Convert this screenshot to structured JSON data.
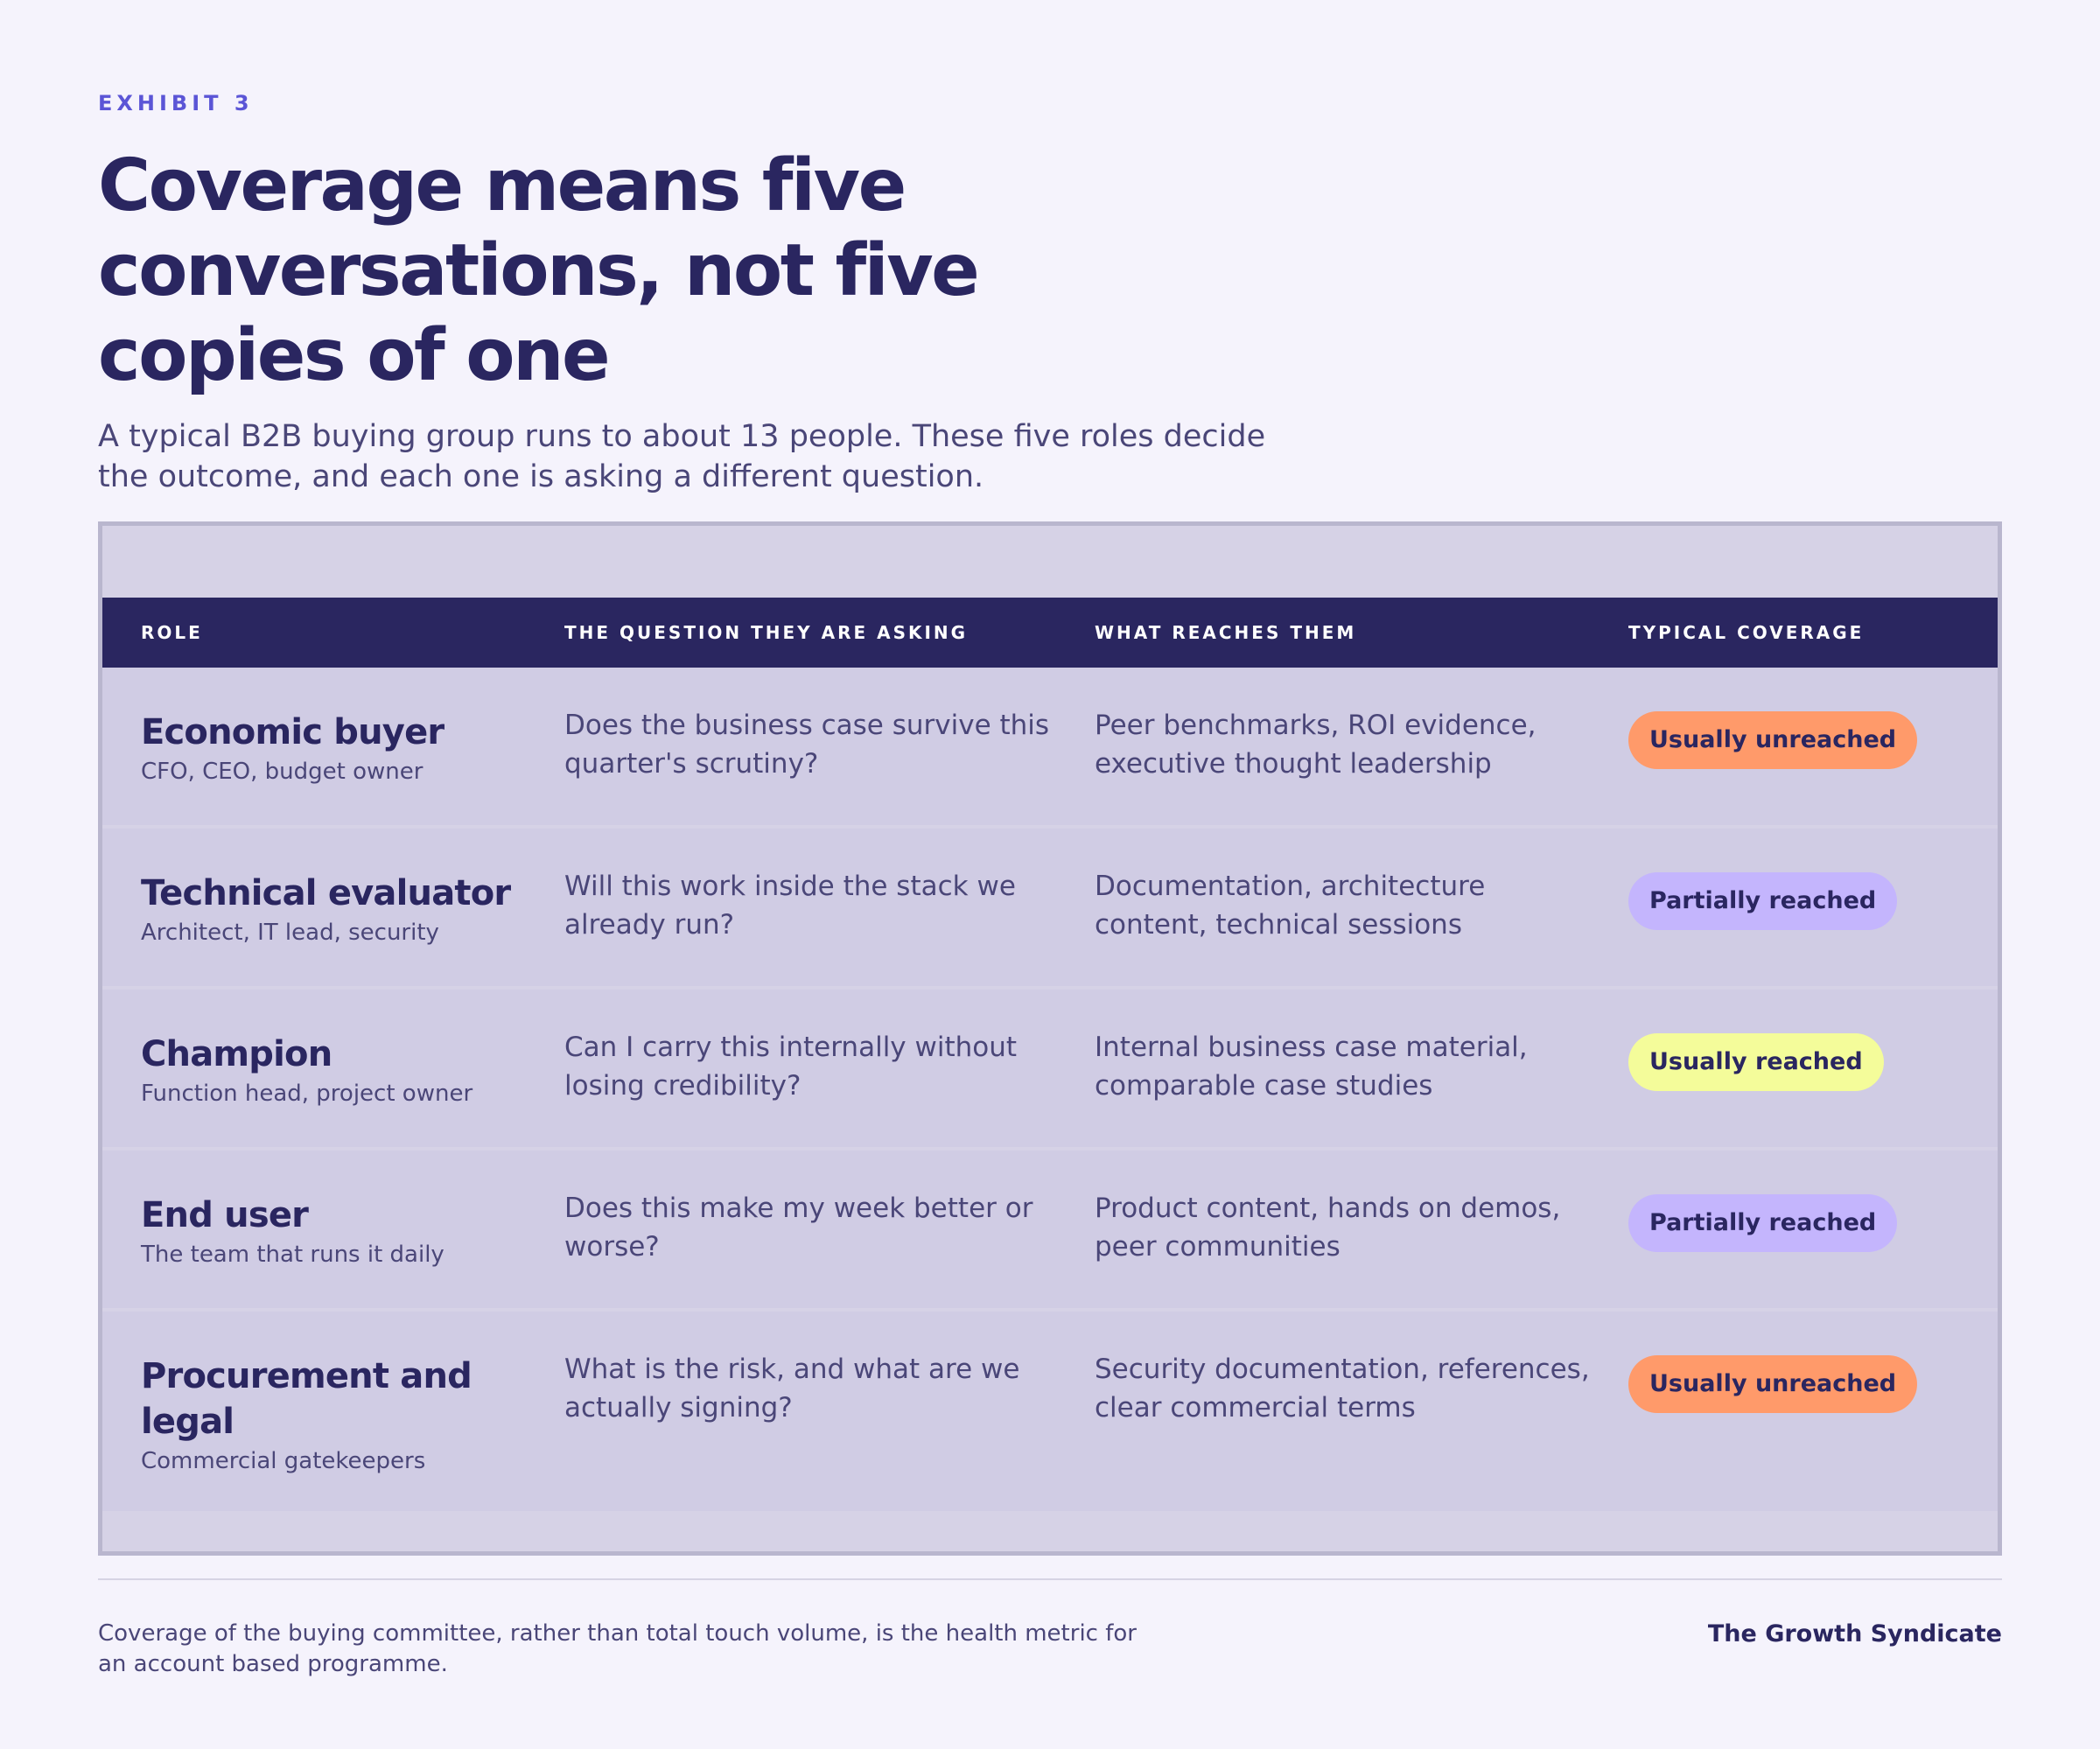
{
  "header": {
    "eyebrow": "EXHIBIT 3",
    "title": "Coverage means five conversations, not five copies of one",
    "subtitle": "A typical B2B buying group runs to about 13 people. These five roles decide the outcome, and each one is asking a different question."
  },
  "table": {
    "columns": [
      "ROLE",
      "THE QUESTION THEY ARE ASKING",
      "WHAT REACHES THEM",
      "TYPICAL COVERAGE"
    ],
    "rows": [
      {
        "role": "Economic buyer",
        "role_sub": "CFO, CEO, budget owner",
        "question": "Does the business case survive this quarter's scrutiny?",
        "reaches": "Peer benchmarks, ROI evidence, executive thought leadership",
        "coverage": "Usually unreached",
        "coverage_color": "#ff9a6a"
      },
      {
        "role": "Technical evaluator",
        "role_sub": "Architect, IT lead, security",
        "question": "Will this work inside the stack we already run?",
        "reaches": "Documentation, architecture content, technical sessions",
        "coverage": "Partially reached",
        "coverage_color": "#c4b5fd"
      },
      {
        "role": "Champion",
        "role_sub": "Function head, project owner",
        "question": "Can I carry this internally without losing credibility?",
        "reaches": "Internal business case material, comparable case studies",
        "coverage": "Usually reached",
        "coverage_color": "#f4fc9a"
      },
      {
        "role": "End user",
        "role_sub": "The team that runs it daily",
        "question": "Does this make my week better or worse?",
        "reaches": "Product content, hands on demos, peer communities",
        "coverage": "Partially reached",
        "coverage_color": "#c4b5fd"
      },
      {
        "role": "Procurement and legal",
        "role_sub": "Commercial gatekeepers",
        "question": "What is the risk, and what are we actually signing?",
        "reaches": "Security documentation, references, clear commercial terms",
        "coverage": "Usually unreached",
        "coverage_color": "#ff9a6a"
      }
    ]
  },
  "footer": {
    "note": "Coverage of the buying committee, rather than total touch volume, is the health metric for an account based programme.",
    "brand": "The Growth Syndicate"
  }
}
